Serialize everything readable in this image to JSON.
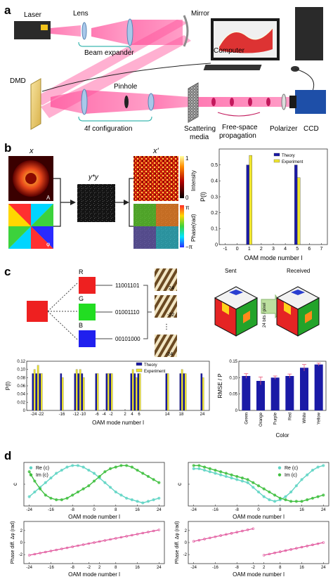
{
  "panels": {
    "a": {
      "letter": "a",
      "labels": {
        "laser": "Laser",
        "lens": "Lens",
        "mirror": "Mirror",
        "beam_expander": "Beam expander",
        "computer": "Computer",
        "dmd": "DMD",
        "pinhole": "Pinhole",
        "config_4f": "4f configuration",
        "scattering_line1": "Scattering",
        "scattering_line2": "media",
        "free_space_line1": "Free-space",
        "free_space_line2": "propagation",
        "polarizer": "Polarizer",
        "ccd": "CCD"
      }
    },
    "b": {
      "letter": "b",
      "labels": {
        "x": "x",
        "x_prime": "x'",
        "operator": "y*y",
        "intensity": "Intensity",
        "phase": "Phase(rad)",
        "cb_top_max": "1",
        "cb_top_min": "0",
        "cb_bot_max": "π",
        "cb_bot_min": "−π",
        "inset_a": "A",
        "inset_phi": "φ"
      }
    },
    "c": {
      "letter": "c",
      "labels": {
        "r": "R",
        "g": "G",
        "b": "B",
        "r_bits": "11001101",
        "g_bits": "01001110",
        "b_bits": "00101000",
        "oam_24": "24",
        "oam_22": "-22",
        "oam_neg24": "-24",
        "sent": "Sent",
        "received": "Received",
        "arrow_text": "24 bits / pixel"
      }
    },
    "d": {
      "letter": "d"
    }
  },
  "chart_data": [
    {
      "id": "b-oam-spectrum",
      "type": "bar",
      "categories": [
        -1,
        0,
        1,
        2,
        3,
        4,
        5,
        6,
        7
      ],
      "series": [
        {
          "name": "Theory",
          "color": "#1a1aa6",
          "values": [
            0,
            0,
            0.5,
            0,
            0,
            0,
            0.5,
            0,
            0
          ]
        },
        {
          "name": "Experiment",
          "color": "#f0e630",
          "values": [
            0,
            0,
            0.56,
            0,
            0,
            0,
            0.42,
            0,
            0
          ]
        }
      ],
      "xlabel": "OAM mode number l",
      "ylabel": "P(l)",
      "ylim": [
        0,
        0.6
      ],
      "yticks": [
        0,
        0.1,
        0.2,
        0.3,
        0.4,
        0.5
      ],
      "xticks": [
        -1,
        0,
        1,
        2,
        3,
        4,
        5,
        6,
        7
      ],
      "legend": "top-right"
    },
    {
      "id": "c-oam-spectrum",
      "type": "bar",
      "categories": [
        -24,
        -23,
        -22,
        -16,
        -12,
        -11,
        -10,
        -6,
        -3,
        -2,
        4,
        5,
        6,
        14,
        18,
        19,
        24
      ],
      "series": [
        {
          "name": "Theory",
          "color": "#1a1aa6",
          "values": [
            0.09,
            0.09,
            0.09,
            0.09,
            0.09,
            0.09,
            0.09,
            0.09,
            0.09,
            0.09,
            0.09,
            0.09,
            0.09,
            0.09,
            0.09,
            0.09,
            0.09
          ]
        },
        {
          "name": "Experiment",
          "color": "#f0e630",
          "values": [
            0.1,
            0.11,
            0.09,
            0.08,
            0.1,
            0.1,
            0.08,
            0.09,
            0.09,
            0.09,
            0.1,
            0.08,
            0.09,
            0.09,
            0.1,
            0.09,
            0.08
          ]
        }
      ],
      "xlabel": "OAM mode number l",
      "ylabel": "P(l)",
      "ylim": [
        0,
        0.12
      ],
      "yticks": [
        0,
        0.02,
        0.04,
        0.06,
        0.08,
        0.1,
        0.12
      ],
      "ytick_labels": [
        "0",
        "0.02",
        "0.04",
        "0.06",
        "0.08",
        "0.10",
        "0.12"
      ],
      "xticks": [
        -24,
        -22,
        -16,
        -12,
        -10,
        -6,
        -4,
        -2,
        2,
        4,
        6,
        14,
        18,
        24
      ],
      "xlim": [
        -26,
        26
      ],
      "legend": "top-right"
    },
    {
      "id": "c-rmse",
      "type": "bar",
      "categories": [
        "Green",
        "Orange",
        "Purple",
        "Red",
        "White",
        "Yellow"
      ],
      "values": [
        0.105,
        0.09,
        0.1,
        0.105,
        0.13,
        0.14
      ],
      "errors": [
        0.007,
        0.012,
        0.005,
        0.006,
        0.01,
        0.004
      ],
      "color": "#1a1aa6",
      "xlabel": "Color",
      "ylabel": "RMSE / P",
      "ylim": [
        0,
        0.15
      ],
      "yticks": [
        0,
        0.05,
        0.1,
        0.15
      ],
      "ytick_labels": [
        "0",
        "0.05",
        "0.10",
        "0.15"
      ]
    },
    {
      "id": "d-coeff-left",
      "type": "line",
      "xlabel": "OAM mode number l",
      "ylabel": "c",
      "xlim": [
        -26,
        26
      ],
      "ylim": [
        -0.14,
        0.14
      ],
      "xticks": [
        -24,
        -16,
        -8,
        0,
        8,
        16,
        24
      ],
      "series": [
        {
          "name": "Re (c)",
          "color": "#5fd4c4",
          "x": [
            -24,
            -22,
            -20,
            -18,
            -16,
            -14,
            -12,
            -10,
            -8,
            -6,
            -4,
            -2,
            0,
            2,
            4,
            6,
            8,
            10,
            12,
            14,
            16,
            18,
            20,
            22,
            24
          ],
          "y": [
            -0.08,
            -0.05,
            -0.02,
            0.01,
            0.04,
            0.07,
            0.09,
            0.11,
            0.12,
            0.12,
            0.11,
            0.09,
            0.07,
            0.04,
            0.01,
            -0.02,
            -0.05,
            -0.07,
            -0.09,
            -0.1,
            -0.11,
            -0.12,
            -0.11,
            -0.1,
            -0.09
          ]
        },
        {
          "name": "Im (c)",
          "color": "#3fbf3f",
          "x": [
            -24,
            -22,
            -20,
            -18,
            -16,
            -14,
            -12,
            -10,
            -8,
            -6,
            -4,
            -2,
            0,
            2,
            4,
            6,
            8,
            10,
            12,
            14,
            16,
            18,
            20,
            22,
            24
          ],
          "y": [
            0.08,
            0.02,
            -0.03,
            -0.07,
            -0.09,
            -0.1,
            -0.1,
            -0.09,
            -0.07,
            -0.05,
            -0.03,
            -0.01,
            0.02,
            0.05,
            0.08,
            0.1,
            0.11,
            0.12,
            0.12,
            0.11,
            0.09,
            0.07,
            0.05,
            0.03,
            0.01
          ]
        }
      ],
      "legend": "top-left"
    },
    {
      "id": "d-coeff-right",
      "type": "line",
      "xlabel": "OAM mode number l",
      "ylabel": "c",
      "xlim": [
        -26,
        26
      ],
      "ylim": [
        -0.14,
        0.14
      ],
      "xticks": [
        -24,
        -16,
        -8,
        0,
        8,
        16,
        24
      ],
      "series": [
        {
          "name": "Re (c)",
          "color": "#5fd4c4",
          "x": [
            -24,
            -22,
            -20,
            -18,
            -16,
            -14,
            -12,
            -10,
            -8,
            -6,
            -4,
            -2,
            0,
            2,
            4,
            6,
            8,
            10,
            12,
            14,
            16,
            18,
            20,
            22,
            24
          ],
          "y": [
            0.1,
            0.1,
            0.09,
            0.08,
            0.07,
            0.06,
            0.05,
            0.04,
            0.03,
            0.02,
            0.01,
            -0.02,
            -0.05,
            -0.08,
            -0.1,
            -0.11,
            -0.1,
            -0.08,
            -0.05,
            -0.01,
            0.03,
            0.06,
            0.09,
            0.11,
            0.12
          ]
        },
        {
          "name": "Im (c)",
          "color": "#3fbf3f",
          "x": [
            -24,
            -22,
            -20,
            -18,
            -16,
            -14,
            -12,
            -10,
            -8,
            -6,
            -4,
            -2,
            0,
            2,
            4,
            6,
            8,
            10,
            12,
            14,
            16,
            18,
            20,
            22,
            24
          ],
          "y": [
            0.12,
            0.12,
            0.11,
            0.1,
            0.09,
            0.08,
            0.07,
            0.06,
            0.05,
            0.04,
            0.03,
            0.01,
            -0.01,
            -0.03,
            -0.05,
            -0.07,
            -0.09,
            -0.1,
            -0.11,
            -0.11,
            -0.11,
            -0.1,
            -0.09,
            -0.08,
            -0.07
          ]
        }
      ],
      "legend": "top-right"
    },
    {
      "id": "d-phase-left",
      "type": "line",
      "xlabel": "OAM mode number l",
      "ylabel": "Phase diff. Δφ (rad)",
      "xlim": [
        -26,
        26
      ],
      "ylim": [
        -3.5,
        3.5
      ],
      "xticks": [
        -24,
        -16,
        -8,
        -2,
        2,
        8,
        16,
        24
      ],
      "yticks": [
        -2,
        0,
        2
      ],
      "series": [
        {
          "name": "",
          "color": "#e0529a",
          "x": [
            -24,
            24
          ],
          "y": [
            -2.1,
            2.1
          ]
        }
      ]
    },
    {
      "id": "d-phase-right",
      "type": "line",
      "xlabel": "OAM mode number l",
      "ylabel": "Phase diff. Δφ (rad)",
      "xlim": [
        -26,
        26
      ],
      "ylim": [
        -3.5,
        3.5
      ],
      "xticks": [
        -24,
        -16,
        -8,
        -2,
        2,
        8,
        16,
        24
      ],
      "yticks": [
        -2,
        0,
        2
      ],
      "series": [
        {
          "name": "",
          "color": "#e0529a",
          "x": [
            -24,
            -2
          ],
          "y": [
            0.2,
            2.3
          ]
        },
        {
          "name": "",
          "color": "#e0529a",
          "x": [
            2,
            24
          ],
          "y": [
            -2.1,
            0.0
          ]
        }
      ]
    }
  ]
}
